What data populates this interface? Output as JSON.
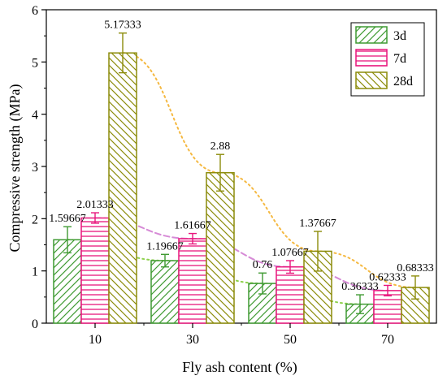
{
  "chart_data": {
    "type": "bar",
    "xlabel": "Fly ash content (%)",
    "ylabel": "Compressive strength (MPa)",
    "categories": [
      "10",
      "30",
      "50",
      "70"
    ],
    "ylim": [
      0,
      6
    ],
    "yticks": [
      0,
      1,
      2,
      3,
      4,
      5,
      6
    ],
    "legend_position": "top-right",
    "series": [
      {
        "name": "3d",
        "values": [
          1.59667,
          1.19667,
          0.76,
          0.36333
        ],
        "labels": [
          "1.59667",
          "1.19667",
          "0.76",
          "0.36333"
        ],
        "errors": [
          0.25,
          0.12,
          0.2,
          0.18
        ],
        "color": "#3f9a32",
        "pattern": "diagonal-left"
      },
      {
        "name": "7d",
        "values": [
          2.01333,
          1.61667,
          1.07667,
          0.62333
        ],
        "labels": [
          "2.01333",
          "1.61667",
          "1.07667",
          "0.62333"
        ],
        "errors": [
          0.1,
          0.1,
          0.12,
          0.1
        ],
        "color": "#e8157c",
        "pattern": "horizontal"
      },
      {
        "name": "28d",
        "values": [
          5.17333,
          2.88,
          1.37667,
          0.68333
        ],
        "labels": [
          "5.17333",
          "2.88",
          "1.37667",
          "0.68333"
        ],
        "errors": [
          0.38,
          0.35,
          0.38,
          0.22
        ],
        "color": "#8c8c0a",
        "pattern": "diagonal-right"
      }
    ],
    "trendlines": [
      {
        "series": "3d",
        "style": "dotted",
        "color": "#8fd14f"
      },
      {
        "series": "7d",
        "style": "dashed",
        "color": "#d68ad6"
      },
      {
        "series": "28d",
        "style": "dotted",
        "color": "#f5b942"
      }
    ]
  }
}
